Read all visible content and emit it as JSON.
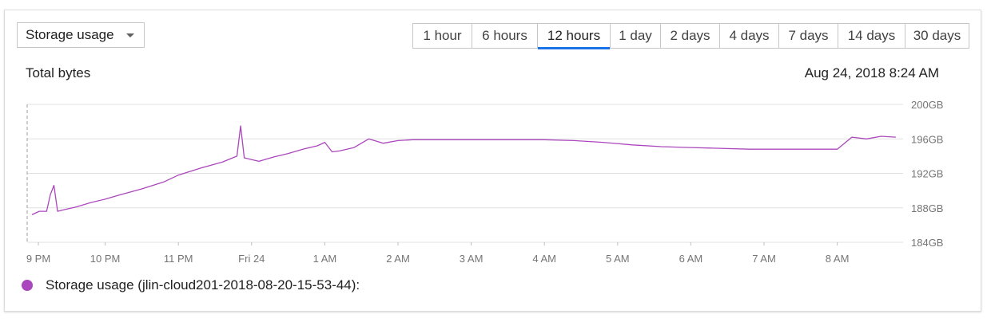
{
  "metric_selector": {
    "label": "Storage usage",
    "icon": "dropdown-caret-icon"
  },
  "time_ranges": [
    {
      "label": "1 hour",
      "active": false
    },
    {
      "label": "6 hours",
      "active": false
    },
    {
      "label": "12 hours",
      "active": true
    },
    {
      "label": "1 day",
      "active": false
    },
    {
      "label": "2 days",
      "active": false
    },
    {
      "label": "4 days",
      "active": false
    },
    {
      "label": "7 days",
      "active": false
    },
    {
      "label": "14 days",
      "active": false
    },
    {
      "label": "30 days",
      "active": false
    }
  ],
  "chart_header": {
    "title": "Total bytes",
    "timestamp": "Aug 24, 2018 8:24 AM"
  },
  "colors": {
    "series": "#ab47bc",
    "accent": "#1a73e8",
    "grid": "#e0e0e0",
    "axis_text": "#757575"
  },
  "chart_data": {
    "type": "line",
    "title": "Total bytes",
    "xlabel": "",
    "ylabel": "",
    "x_tick_labels": [
      "9 PM",
      "10 PM",
      "11 PM",
      "Fri 24",
      "1 AM",
      "2 AM",
      "3 AM",
      "4 AM",
      "5 AM",
      "6 AM",
      "7 AM",
      "8 AM"
    ],
    "y_tick_labels": [
      "200GB",
      "196GB",
      "192GB",
      "188GB",
      "184GB"
    ],
    "ylim": [
      184,
      200
    ],
    "grid": true,
    "legend_position": "bottom-left",
    "series": [
      {
        "name": "Storage usage (jlin-cloud201-2018-08-20-15-53-44):",
        "x_hours": [
          0,
          0.1,
          0.2,
          0.25,
          0.3,
          0.35,
          0.45,
          0.6,
          0.8,
          1.0,
          1.2,
          1.5,
          1.8,
          2.0,
          2.3,
          2.6,
          2.8,
          2.85,
          2.9,
          3.0,
          3.1,
          3.3,
          3.5,
          3.7,
          3.9,
          4.0,
          4.1,
          4.2,
          4.4,
          4.6,
          4.8,
          5.0,
          5.2,
          5.4,
          5.8,
          6.2,
          6.6,
          7.0,
          7.4,
          7.8,
          8.2,
          8.6,
          9.0,
          9.4,
          9.8,
          10.2,
          10.5,
          10.6,
          10.75,
          10.9,
          11.0,
          11.2,
          11.4,
          11.6,
          11.8
        ],
        "values_gb": [
          187.2,
          187.6,
          187.6,
          189.5,
          190.6,
          187.6,
          187.8,
          188.1,
          188.6,
          189.0,
          189.5,
          190.2,
          191.0,
          191.8,
          192.6,
          193.3,
          194.0,
          197.5,
          193.8,
          193.6,
          193.4,
          193.9,
          194.3,
          194.8,
          195.2,
          195.6,
          194.5,
          194.6,
          195.0,
          196.0,
          195.5,
          195.8,
          195.9,
          195.9,
          195.9,
          195.9,
          195.9,
          195.9,
          195.8,
          195.6,
          195.3,
          195.1,
          195.0,
          194.9,
          194.8,
          194.8,
          194.8,
          194.8,
          194.8,
          194.8,
          194.8,
          196.2,
          196.0,
          196.3,
          196.2
        ]
      }
    ]
  }
}
